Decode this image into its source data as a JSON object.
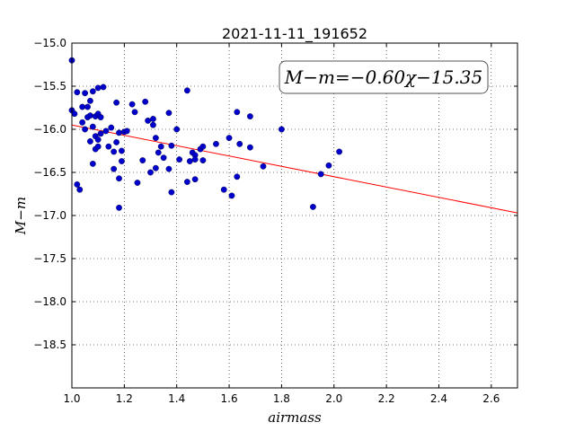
{
  "chart_data": {
    "type": "scatter",
    "title": "2021-11-11_191652",
    "xlabel": "airmass",
    "ylabel": "M−m",
    "xlim": [
      1.0,
      2.7
    ],
    "ylim": [
      -19.0,
      -15.0
    ],
    "y_inverted": true,
    "grid": true,
    "xticks": [
      1.0,
      1.2,
      1.4,
      1.6,
      1.8,
      2.0,
      2.2,
      2.4,
      2.6
    ],
    "xtick_labels": [
      "1.0",
      "1.2",
      "1.4",
      "1.6",
      "1.8",
      "2.0",
      "2.2",
      "2.4",
      "2.6"
    ],
    "yticks": [
      -15.0,
      -15.5,
      -16.0,
      -16.5,
      -17.0,
      -17.5,
      -18.0,
      -18.5
    ],
    "ytick_labels": [
      "−15.0",
      "−15.5",
      "−16.0",
      "−16.5",
      "−17.0",
      "−17.5",
      "−18.0",
      "−18.5"
    ],
    "annotation": "M−m=−0.60χ−15.35",
    "fit": {
      "slope": -0.6,
      "intercept": -15.35,
      "color": "#ff0000"
    },
    "point_color": "#0000cc",
    "points": [
      [
        1.0,
        -15.2
      ],
      [
        1.0,
        -15.78
      ],
      [
        1.01,
        -15.82
      ],
      [
        1.02,
        -15.57
      ],
      [
        1.02,
        -16.64
      ],
      [
        1.03,
        -16.7
      ],
      [
        1.04,
        -15.74
      ],
      [
        1.04,
        -15.92
      ],
      [
        1.05,
        -15.58
      ],
      [
        1.05,
        -16.0
      ],
      [
        1.06,
        -15.74
      ],
      [
        1.06,
        -15.86
      ],
      [
        1.07,
        -15.84
      ],
      [
        1.07,
        -15.67
      ],
      [
        1.07,
        -16.14
      ],
      [
        1.08,
        -15.56
      ],
      [
        1.08,
        -15.97
      ],
      [
        1.08,
        -16.4
      ],
      [
        1.09,
        -15.85
      ],
      [
        1.09,
        -16.08
      ],
      [
        1.09,
        -16.23
      ],
      [
        1.1,
        -15.52
      ],
      [
        1.1,
        -15.82
      ],
      [
        1.1,
        -16.12
      ],
      [
        1.1,
        -16.2
      ],
      [
        1.11,
        -15.86
      ],
      [
        1.11,
        -16.05
      ],
      [
        1.12,
        -15.51
      ],
      [
        1.13,
        -16.02
      ],
      [
        1.14,
        -16.2
      ],
      [
        1.15,
        -15.98
      ],
      [
        1.16,
        -16.26
      ],
      [
        1.16,
        -16.46
      ],
      [
        1.17,
        -15.69
      ],
      [
        1.17,
        -16.15
      ],
      [
        1.18,
        -16.04
      ],
      [
        1.18,
        -16.57
      ],
      [
        1.18,
        -16.91
      ],
      [
        1.19,
        -16.25
      ],
      [
        1.19,
        -16.37
      ],
      [
        1.2,
        -16.03
      ],
      [
        1.21,
        -16.02
      ],
      [
        1.23,
        -15.71
      ],
      [
        1.24,
        -15.8
      ],
      [
        1.25,
        -16.62
      ],
      [
        1.27,
        -16.36
      ],
      [
        1.28,
        -15.68
      ],
      [
        1.29,
        -15.9
      ],
      [
        1.3,
        -16.5
      ],
      [
        1.31,
        -15.88
      ],
      [
        1.31,
        -15.95
      ],
      [
        1.32,
        -16.1
      ],
      [
        1.32,
        -16.45
      ],
      [
        1.33,
        -16.27
      ],
      [
        1.34,
        -16.2
      ],
      [
        1.35,
        -16.33
      ],
      [
        1.37,
        -15.81
      ],
      [
        1.37,
        -16.46
      ],
      [
        1.38,
        -16.19
      ],
      [
        1.38,
        -16.73
      ],
      [
        1.4,
        -16.0
      ],
      [
        1.41,
        -16.35
      ],
      [
        1.44,
        -16.61
      ],
      [
        1.44,
        -15.55
      ],
      [
        1.45,
        -16.37
      ],
      [
        1.46,
        -16.27
      ],
      [
        1.47,
        -16.3
      ],
      [
        1.47,
        -16.35
      ],
      [
        1.47,
        -16.58
      ],
      [
        1.49,
        -16.23
      ],
      [
        1.5,
        -16.36
      ],
      [
        1.5,
        -16.2
      ],
      [
        1.55,
        -16.17
      ],
      [
        1.58,
        -16.7
      ],
      [
        1.6,
        -16.1
      ],
      [
        1.61,
        -16.77
      ],
      [
        1.63,
        -15.8
      ],
      [
        1.63,
        -16.55
      ],
      [
        1.64,
        -16.17
      ],
      [
        1.68,
        -15.85
      ],
      [
        1.68,
        -16.21
      ],
      [
        1.73,
        -16.43
      ],
      [
        1.8,
        -16.0
      ],
      [
        1.92,
        -16.9
      ],
      [
        1.95,
        -16.52
      ],
      [
        1.98,
        -16.42
      ],
      [
        2.02,
        -16.26
      ]
    ]
  }
}
